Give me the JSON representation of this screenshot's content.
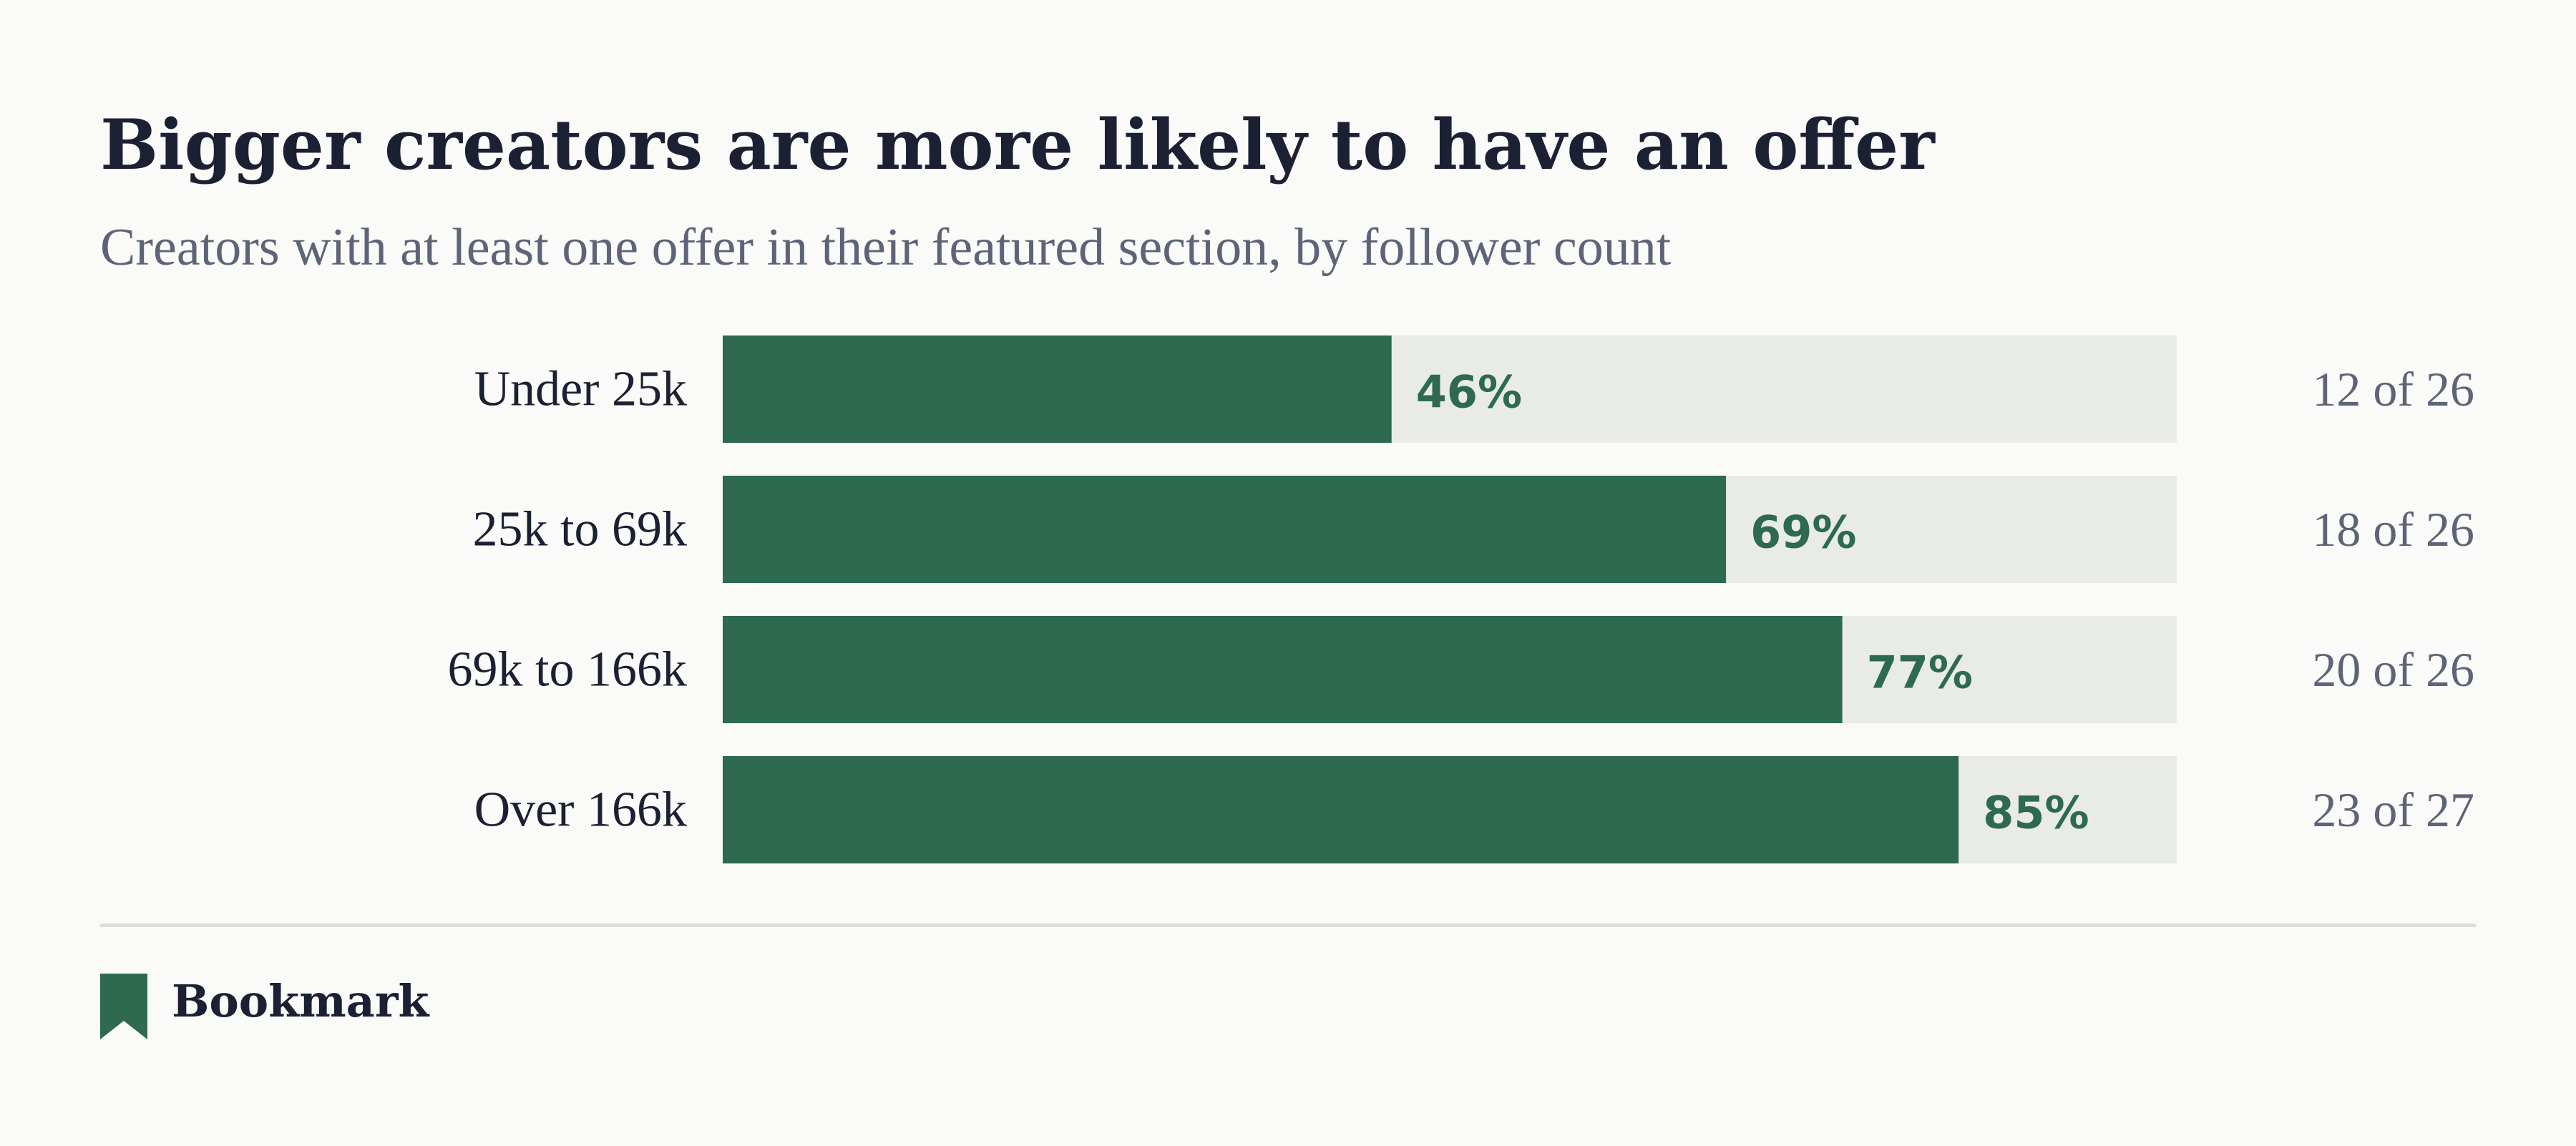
{
  "title": "Bigger creators are more likely to have an offer",
  "subtitle": "Creators with at least one offer in their featured section, by follower count",
  "brand": {
    "name": "Bookmark",
    "icon": "bookmark-icon"
  },
  "colors": {
    "bar": "#2d6a50",
    "track": "#e9ebe6",
    "value_text": "#2d6a50",
    "title_text": "#1c2033",
    "muted_text": "#5e6478"
  },
  "chart_data": {
    "type": "bar",
    "orientation": "horizontal",
    "categories": [
      "Under 25k",
      "25k to 69k",
      "69k to 166k",
      "Over 166k"
    ],
    "values": [
      46,
      69,
      77,
      85
    ],
    "value_labels": [
      "46%",
      "69%",
      "77%",
      "85%"
    ],
    "counts": [
      "12 of 26",
      "18 of 26",
      "20 of 26",
      "23 of 27"
    ],
    "unit": "%",
    "xlim": [
      0,
      100
    ],
    "grid": false,
    "legend": false
  }
}
